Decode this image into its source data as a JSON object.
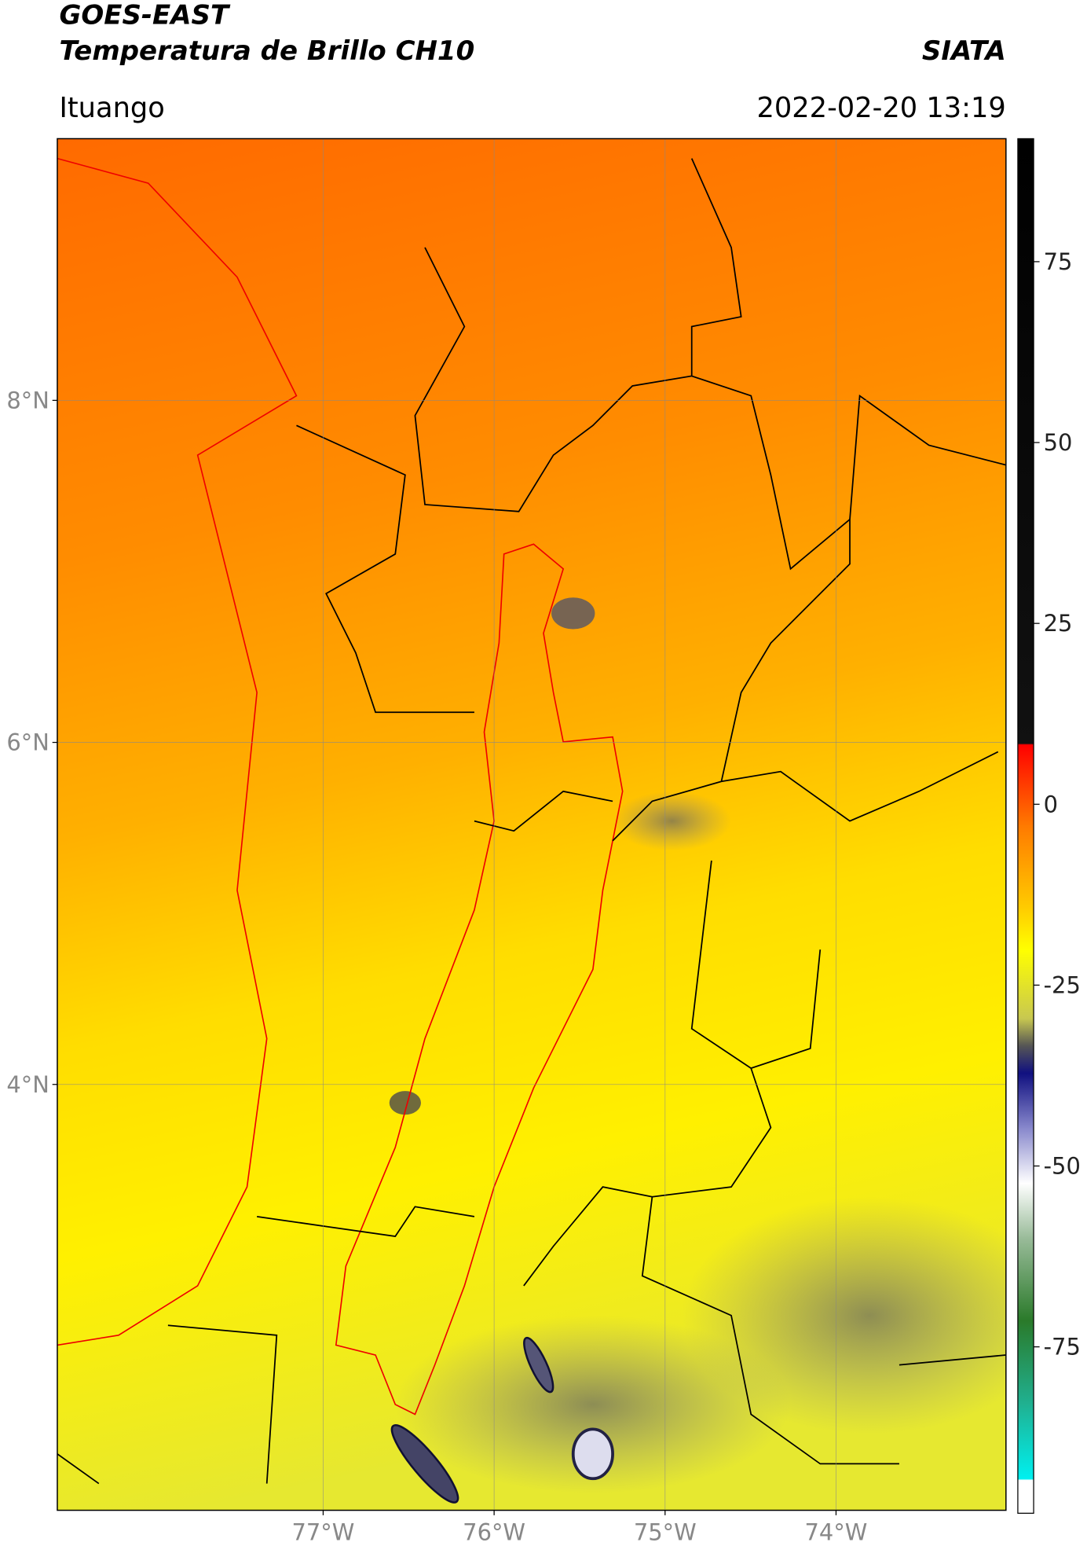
{
  "header": {
    "title": "GOES-EAST",
    "subtitle": "Temperatura de Brillo CH10",
    "source": "SIATA",
    "location": "Ituango",
    "datetime": "2022-02-20 13:19"
  },
  "chart_data": {
    "type": "map",
    "xlim": [
      -78.555,
      -73.006
    ],
    "ylim": [
      1.51,
      9.53
    ],
    "xticks": [
      {
        "value": -77,
        "label": "77°W"
      },
      {
        "value": -76,
        "label": "76°W"
      },
      {
        "value": -75,
        "label": "75°W"
      },
      {
        "value": -74,
        "label": "74°W"
      }
    ],
    "yticks": [
      {
        "value": 4,
        "label": "4°N"
      },
      {
        "value": 6,
        "label": "6°N"
      },
      {
        "value": 8,
        "label": "8°N"
      }
    ],
    "grid": true,
    "colorbar": {
      "lim": [
        -98,
        92
      ],
      "ticks": [
        -75,
        -50,
        -25,
        0,
        25,
        50,
        75
      ]
    }
  }
}
